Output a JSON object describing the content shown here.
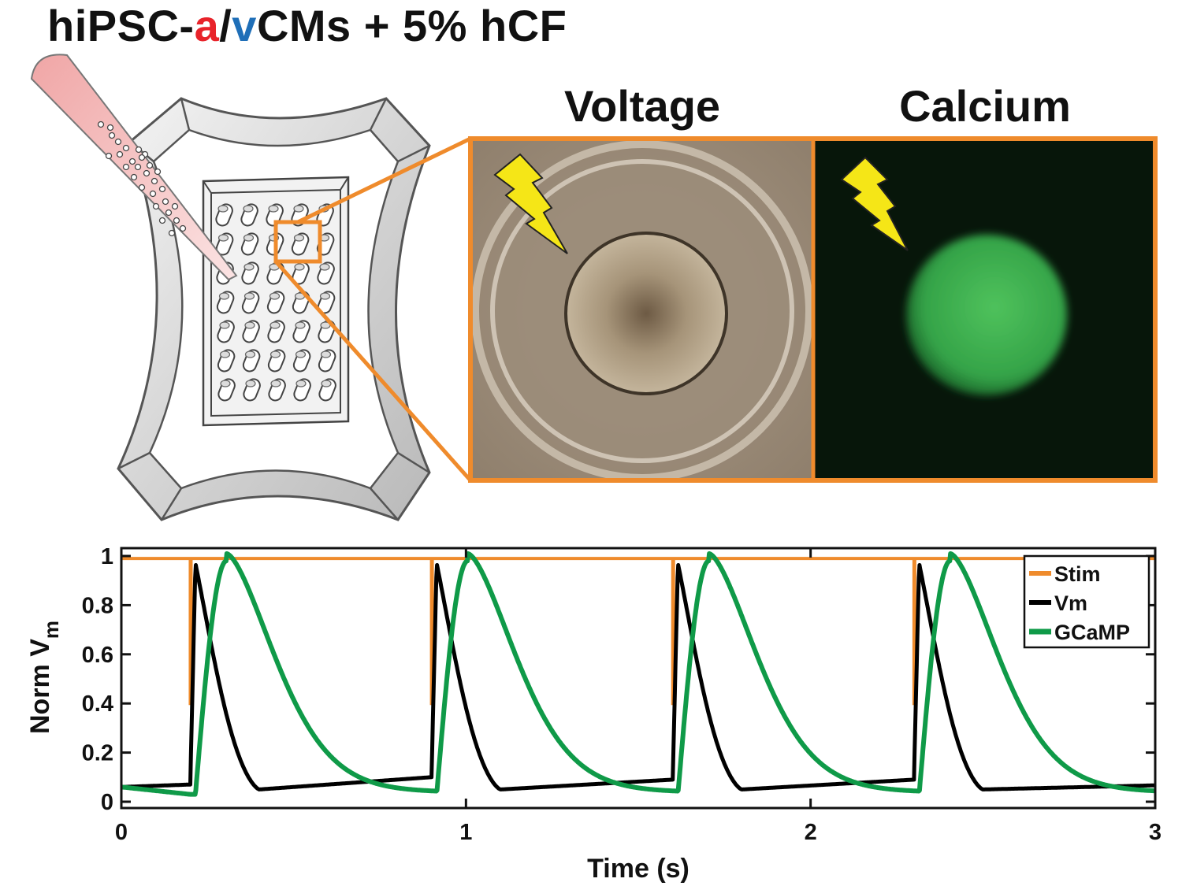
{
  "header": {
    "title_prefix": "hiPSC-",
    "title_a": "a",
    "title_slash": "/",
    "title_v": "v",
    "title_suffix": "CMs + 5% hCF"
  },
  "panels": {
    "voltage_label": "Voltage",
    "calcium_label": "Calcium"
  },
  "colors": {
    "title_a": "#e8232a",
    "title_v": "#1f6fb8",
    "highlight_box": "#ef8b2c",
    "stim": "#ef8b2c",
    "vm": "#000000",
    "gcamp": "#0f9a48"
  },
  "chart_data": {
    "type": "line",
    "xlabel": "Time (s)",
    "ylabel_main": "Norm V",
    "ylabel_sub": "m",
    "xlim": [
      0,
      3
    ],
    "ylim": [
      0,
      1
    ],
    "xticks": [
      "0",
      "1",
      "2",
      "3"
    ],
    "yticks": [
      "0",
      "0.2",
      "0.4",
      "0.6",
      "0.8",
      "1"
    ],
    "legend_position": "top-right",
    "stim_times": [
      0.2,
      0.9,
      1.6,
      2.3
    ],
    "series": [
      {
        "name": "Stim",
        "color": "#ef8b2c",
        "baseline": 0.99,
        "pulse_min": 0.4
      },
      {
        "name": "Vm",
        "color": "#000000",
        "peak": 0.97,
        "pre_beat": [
          0.07,
          0.1,
          0.09,
          0.09
        ],
        "trough": 0.05
      },
      {
        "name": "GCaMP",
        "color": "#0f9a48",
        "peak": 0.98,
        "peak_delay": 0.09,
        "baseline": 0.03
      }
    ]
  }
}
